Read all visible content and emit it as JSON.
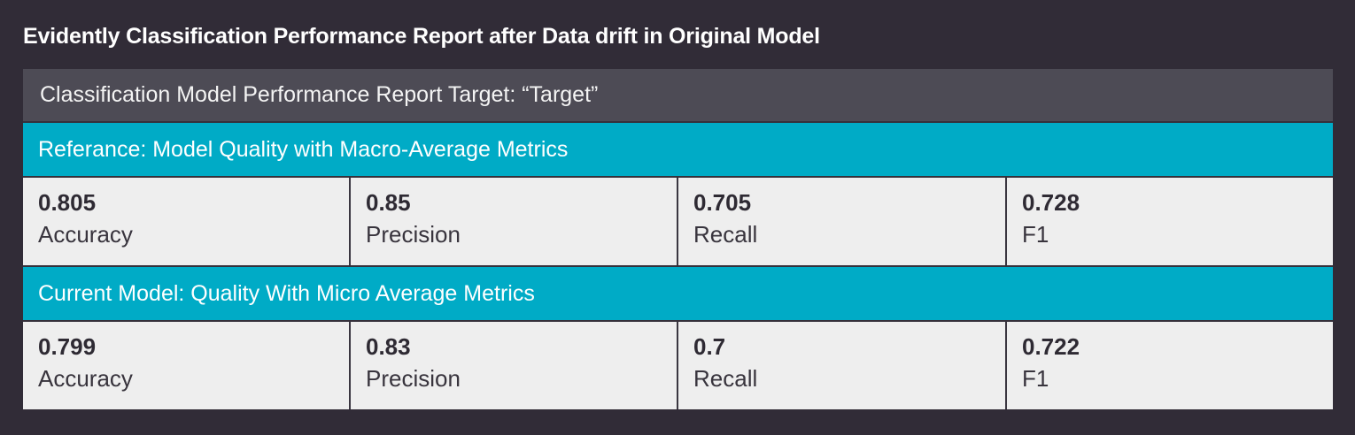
{
  "title": "Evidently Classification Performance Report after Data drift in Original Model",
  "report": {
    "header": "Classification Model Performance Report Target: “Target”",
    "sections": [
      {
        "title": "Referance: Model Quality with Macro-Average Metrics",
        "metrics": [
          {
            "value": "0.805",
            "label": "Accuracy"
          },
          {
            "value": "0.85",
            "label": "Precision"
          },
          {
            "value": "0.705",
            "label": "Recall"
          },
          {
            "value": "0.728",
            "label": "F1"
          }
        ]
      },
      {
        "title": "Current Model: Quality With Micro Average Metrics",
        "metrics": [
          {
            "value": "0.799",
            "label": "Accuracy"
          },
          {
            "value": "0.83",
            "label": "Precision"
          },
          {
            "value": "0.7",
            "label": "Recall"
          },
          {
            "value": "0.722",
            "label": "F1"
          }
        ]
      }
    ]
  },
  "colors": {
    "background": "#312c37",
    "header_bg": "#4d4b55",
    "section_bg": "#00abc6",
    "cell_bg": "#eeeeee",
    "text_dark": "#2e2a33"
  }
}
